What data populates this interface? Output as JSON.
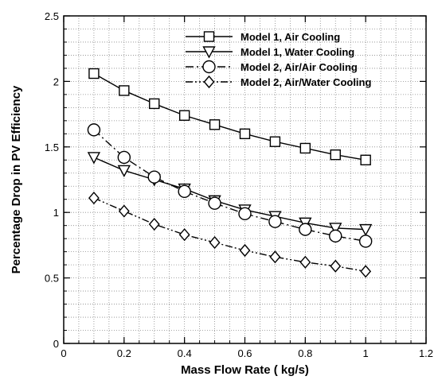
{
  "chart_data": {
    "type": "line",
    "title": "",
    "xlabel": "Mass Flow Rate ( kg/s)",
    "ylabel": "Percentage Drop in PV Efficiency",
    "xlim": [
      0,
      1.2
    ],
    "ylim": [
      0,
      2.5
    ],
    "x_ticks": [
      "0",
      "0.2",
      "0.4",
      "0.6",
      "0.8",
      "1",
      "1.2"
    ],
    "y_ticks": [
      "0",
      "0.5",
      "1",
      "1.5",
      "2",
      "2.5"
    ],
    "x_tick_values": [
      0,
      0.2,
      0.4,
      0.6,
      0.8,
      1.0,
      1.2
    ],
    "y_tick_values": [
      0,
      0.5,
      1.0,
      1.5,
      2.0,
      2.5
    ],
    "x_minor_step": 0.05,
    "y_minor_step": 0.1,
    "grid": true,
    "legend_position": "top-right",
    "x": [
      0.1,
      0.2,
      0.3,
      0.4,
      0.5,
      0.6,
      0.7,
      0.8,
      0.9,
      1.0
    ],
    "series": [
      {
        "name": "Model 1, Air Cooling",
        "values": [
          2.06,
          1.93,
          1.83,
          1.74,
          1.67,
          1.6,
          1.54,
          1.49,
          1.44,
          1.4
        ],
        "marker": "square",
        "line_style": "solid"
      },
      {
        "name": "Model 1, Water Cooling",
        "values": [
          1.42,
          1.32,
          1.25,
          1.18,
          1.09,
          1.02,
          0.97,
          0.92,
          0.88,
          0.87
        ],
        "marker": "triangle-down",
        "line_style": "solid"
      },
      {
        "name": "Model 2, Air/Air Cooling",
        "values": [
          1.63,
          1.42,
          1.27,
          1.16,
          1.07,
          0.99,
          0.93,
          0.87,
          0.82,
          0.78
        ],
        "marker": "circle",
        "line_style": "dashdot"
      },
      {
        "name": "Model 2, Air/Water Cooling",
        "values": [
          1.11,
          1.01,
          0.91,
          0.83,
          0.77,
          0.71,
          0.66,
          0.62,
          0.59,
          0.55
        ],
        "marker": "diamond",
        "line_style": "dashdotdot"
      }
    ]
  }
}
